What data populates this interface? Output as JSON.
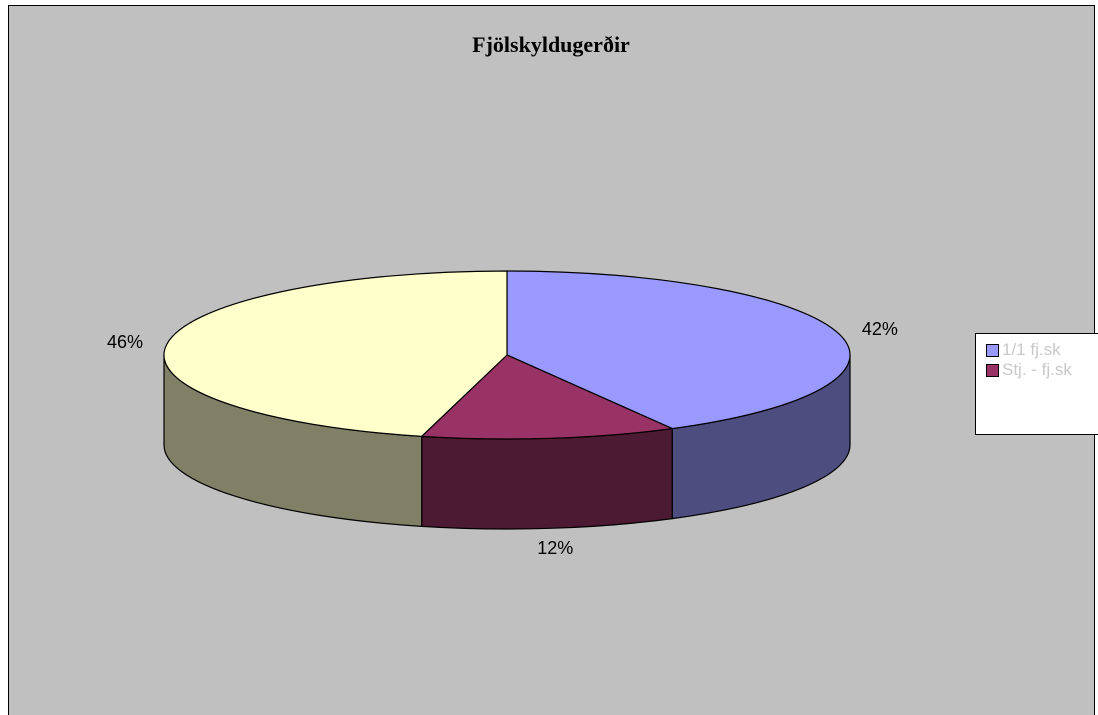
{
  "chart_data": {
    "type": "pie",
    "title": "Fjölskyldugerðir",
    "categories": [
      "1/1 fj.sk",
      "Stj. - fj.sk",
      null
    ],
    "values": [
      42,
      12,
      46
    ],
    "value_labels": [
      "42%",
      "12%",
      "46%"
    ],
    "colors": [
      "#9999FF",
      "#993366",
      "#FFFFCC"
    ],
    "legend": "right"
  }
}
